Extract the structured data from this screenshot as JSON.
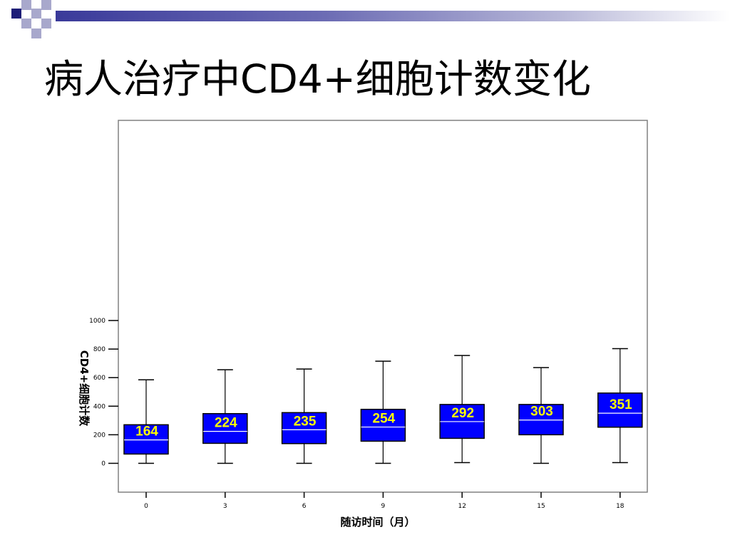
{
  "slide": {
    "title": "病人治疗中CD4+细胞计数变化"
  },
  "colors": {
    "box_fill": "#0000ff",
    "median_label": "#ffff00",
    "deco_dark": "#1e1e78",
    "deco_light": "#a8a8cc"
  },
  "chart_data": {
    "type": "box",
    "title": "",
    "xlabel": "随访时间（月）",
    "ylabel": "CD4+细胞计数",
    "categories": [
      "0",
      "3",
      "6",
      "9",
      "12",
      "15",
      "18"
    ],
    "y_ticks": [
      "0",
      "200",
      "400",
      "600",
      "800",
      "1000"
    ],
    "ylim": [
      -90,
      1200
    ],
    "grid": false,
    "boxes": [
      {
        "x": "0",
        "min": 0,
        "q1": 65,
        "median": 164,
        "q3": 270,
        "max": 585,
        "label": "164"
      },
      {
        "x": "3",
        "min": 0,
        "q1": 140,
        "median": 224,
        "q3": 348,
        "max": 655,
        "label": "224"
      },
      {
        "x": "6",
        "min": 0,
        "q1": 138,
        "median": 235,
        "q3": 355,
        "max": 660,
        "label": "235"
      },
      {
        "x": "9",
        "min": 0,
        "q1": 155,
        "median": 254,
        "q3": 378,
        "max": 715,
        "label": "254"
      },
      {
        "x": "12",
        "min": 5,
        "q1": 175,
        "median": 292,
        "q3": 412,
        "max": 755,
        "label": "292"
      },
      {
        "x": "15",
        "min": 0,
        "q1": 200,
        "median": 303,
        "q3": 412,
        "max": 670,
        "label": "303"
      },
      {
        "x": "18",
        "min": 5,
        "q1": 253,
        "median": 351,
        "q3": 492,
        "max": 803,
        "label": "351"
      }
    ]
  }
}
